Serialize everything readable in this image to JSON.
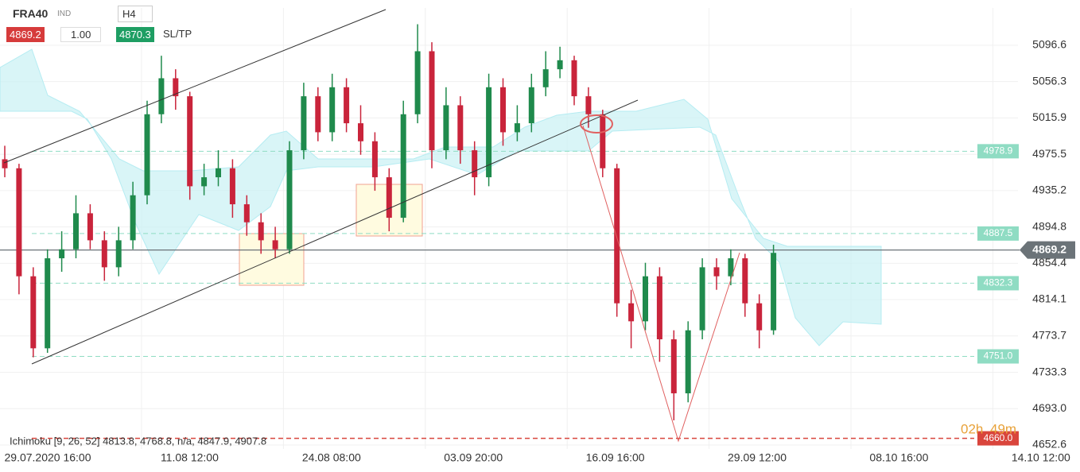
{
  "toolbar": {
    "symbol": "FRA40",
    "symbol_type": "IND",
    "timeframe": "H4",
    "sell_price": "4869.2",
    "volume": "1.00",
    "buy_price": "4870.3",
    "sltp": "SL/TP"
  },
  "indicator": "Ichimoku [9, 26, 52] 4813.8, 4768.8, n/a, 4847.9, 4907.8",
  "timer": {
    "hours": "02h",
    "minutes": "49m"
  },
  "chart_data": {
    "type": "candlestick",
    "up_color": "#1f8a4c",
    "down_color": "#c9243b",
    "open": [
      4970,
      4960,
      4840,
      4760,
      4860,
      4870,
      4910,
      4880,
      4850,
      4880,
      4930,
      5020,
      5060,
      5040,
      4940,
      4950,
      4960,
      4920,
      4900,
      4880,
      4870,
      4980,
      5040,
      5000,
      5050,
      5010,
      4990,
      4950,
      4905,
      5020,
      5090,
      4980,
      5030,
      4980,
      4950,
      5050,
      5000,
      5010,
      5050,
      5070,
      5080,
      5040,
      5020,
      4960,
      4810,
      4790,
      4840,
      4770,
      4710,
      4780,
      4850,
      4840,
      4860,
      4810,
      4780
    ],
    "high": [
      4985,
      4965,
      4850,
      4870,
      4890,
      4930,
      4920,
      4890,
      4895,
      4945,
      5035,
      5085,
      5070,
      5045,
      4965,
      4980,
      4970,
      4930,
      4910,
      4895,
      4990,
      5055,
      5050,
      5065,
      5060,
      5030,
      5000,
      4960,
      5035,
      5120,
      5100,
      5050,
      5040,
      4990,
      5065,
      5060,
      5030,
      5065,
      5090,
      5095,
      5085,
      5050,
      5025,
      4965,
      4825,
      4855,
      4850,
      4780,
      4790,
      4860,
      4860,
      4870,
      4865,
      4820,
      4875
    ],
    "low": [
      4950,
      4820,
      4750,
      4755,
      4845,
      4860,
      4870,
      4835,
      4840,
      4870,
      4920,
      5010,
      5025,
      4925,
      4930,
      4940,
      4905,
      4885,
      4865,
      4860,
      4865,
      4970,
      4990,
      4990,
      5000,
      4975,
      4935,
      4890,
      4900,
      5010,
      4960,
      4970,
      4965,
      4930,
      4940,
      4985,
      4990,
      5000,
      5040,
      5060,
      5030,
      5005,
      4950,
      4795,
      4760,
      4780,
      4745,
      4680,
      4700,
      4770,
      4825,
      4830,
      4795,
      4760,
      4775
    ],
    "close": [
      4960,
      4840,
      4760,
      4860,
      4870,
      4910,
      4880,
      4850,
      4880,
      4930,
      5020,
      5060,
      5040,
      4940,
      4950,
      4960,
      4920,
      4900,
      4880,
      4870,
      4980,
      5040,
      5000,
      5050,
      5010,
      4990,
      4950,
      4905,
      5020,
      5090,
      4980,
      5030,
      4980,
      4950,
      5050,
      5000,
      5010,
      5050,
      5070,
      5080,
      5040,
      5020,
      4960,
      4810,
      4790,
      4840,
      4770,
      4710,
      4780,
      4850,
      4840,
      4860,
      4810,
      4780,
      4866
    ],
    "ylim": [
      4652.6,
      5096.6
    ],
    "yticks": [
      5096.6,
      5056.3,
      5015.9,
      4975.5,
      4935.2,
      4894.8,
      4854.4,
      4814.1,
      4773.7,
      4733.3,
      {
        "value": 4693,
        "label": "4693.0"
      },
      4652.6
    ],
    "xticks": [
      "29.07.2020 16:00",
      "11.08 12:00",
      "24.08 08:00",
      "03.09 20:00",
      "16.09 16:00",
      "29.09 12:00",
      "08.10 16:00",
      "14.10 12:00"
    ],
    "grid": true,
    "levels": [
      {
        "value": 4978.9,
        "color": "#8fdcc3"
      },
      {
        "value": 4887.5,
        "color": "#8fdcc3"
      },
      {
        "value": 4832.3,
        "color": "#8fdcc3"
      },
      {
        "value": {
          "value": 4751,
          "label": "4751.0"
        },
        "color": "#8fdcc3"
      },
      {
        "value": {
          "value": 4660,
          "label": "4660.0"
        },
        "color": "#d9453c"
      }
    ],
    "current_price": 4869.2
  }
}
